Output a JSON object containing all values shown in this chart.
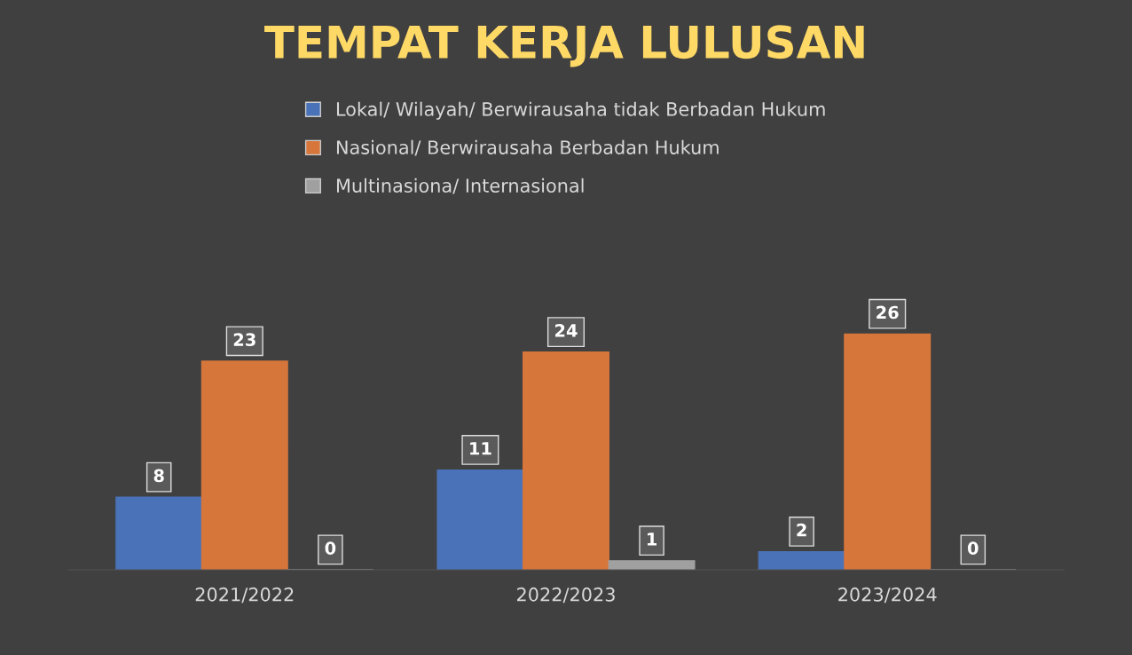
{
  "chart_data": {
    "type": "bar",
    "title": "TEMPAT KERJA LULUSAN",
    "categories": [
      "2021/2022",
      "2022/2023",
      "2023/2024"
    ],
    "series": [
      {
        "name": "Lokal/ Wilayah/ Berwirausaha tidak Berbadan Hukum",
        "color": "#4a72b8",
        "values": [
          8,
          11,
          2
        ]
      },
      {
        "name": "Nasional/ Berwirausaha Berbadan Hukum",
        "color": "#d6763b",
        "values": [
          23,
          24,
          26
        ]
      },
      {
        "name": "Multinasiona/ Internasional",
        "color": "#a0a0a0",
        "values": [
          0,
          1,
          0
        ]
      }
    ],
    "data_labels": true,
    "legend": "top",
    "grid": false
  }
}
